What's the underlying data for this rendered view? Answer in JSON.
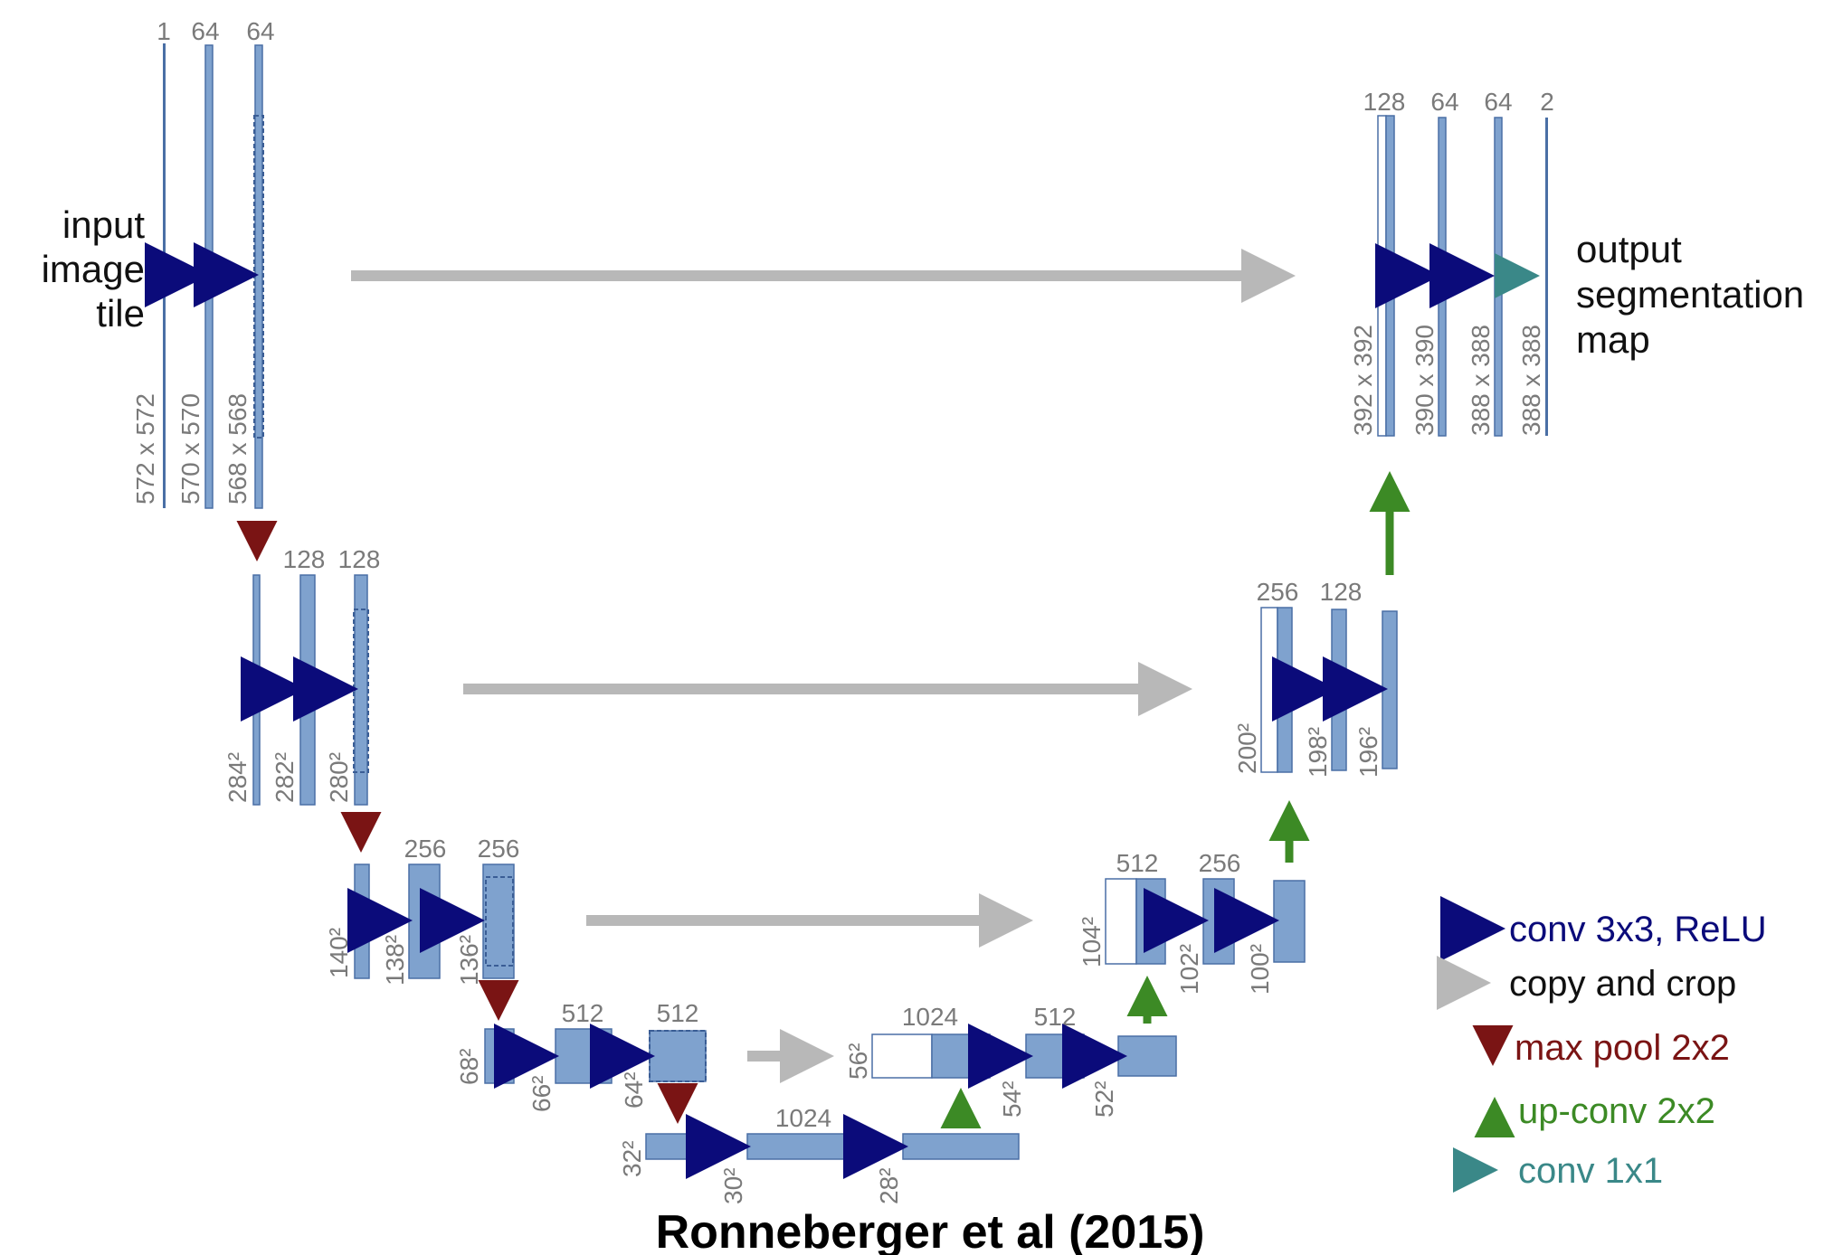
{
  "colors": {
    "feature_map": "#7fa2ce",
    "feature_border": "#4a6fa5",
    "conv": "#0b0b7a",
    "copy": "#b8b8b8",
    "pool": "#7a1414",
    "upconv": "#3c8a25",
    "conv1x1": "#3a8888",
    "label": "#7a7a7a"
  },
  "input_label": [
    "input",
    "image",
    "tile"
  ],
  "output_label": [
    "output",
    "segmentation",
    "map"
  ],
  "caption": "Ronneberger et al (2015)",
  "legend": [
    {
      "label": "conv 3x3, ReLU",
      "color": "#0b0b7a",
      "icon": "right-arrow-icon"
    },
    {
      "label": "copy and crop",
      "color": "#b8b8b8",
      "icon": "right-arrow-icon"
    },
    {
      "label": "max pool 2x2",
      "color": "#7a1414",
      "icon": "down-arrow-icon"
    },
    {
      "label": "up-conv 2x2",
      "color": "#3c8a25",
      "icon": "up-arrow-icon"
    },
    {
      "label": "conv 1x1",
      "color": "#3a8888",
      "icon": "right-arrow-icon"
    }
  ],
  "channels": {
    "enc1": [
      "1",
      "64",
      "64"
    ],
    "enc2": [
      "128",
      "128"
    ],
    "enc3": [
      "256",
      "256"
    ],
    "enc4": [
      "512",
      "512"
    ],
    "bottleneck": [
      "1024"
    ],
    "dec4": [
      "1024",
      "512"
    ],
    "dec3": [
      "512",
      "256"
    ],
    "dec2": [
      "256",
      "128"
    ],
    "dec1": [
      "128",
      "64",
      "64",
      "2"
    ]
  },
  "sizes": {
    "enc1": [
      "572 x 572",
      "570 x 570",
      "568 x 568"
    ],
    "enc2": [
      "284²",
      "282²",
      "280²"
    ],
    "enc3": [
      "140²",
      "138²",
      "136²"
    ],
    "enc4": [
      "68²",
      "66²",
      "64²"
    ],
    "bottleneck": [
      "32²",
      "30²",
      "28²"
    ],
    "dec4": [
      "56²",
      "54²",
      "52²"
    ],
    "dec3": [
      "104²",
      "102²",
      "100²"
    ],
    "dec2": [
      "200²",
      "198²",
      "196²"
    ],
    "dec1": [
      "392 x 392",
      "390 x 390",
      "388 x 388",
      "388 x 388"
    ]
  }
}
